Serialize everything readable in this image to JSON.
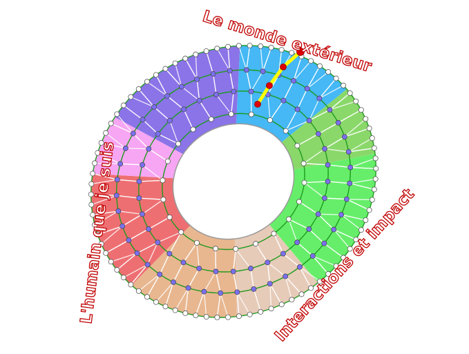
{
  "labels": {
    "top": "Le monde extérieur",
    "left": "L'humain que je suis",
    "bottom_right": "Interactions et impact"
  },
  "colors": {
    "label_outline": "#c00000",
    "ring_lines": "#1e9a1e",
    "white_nodes": "#ffffff",
    "inner_nodes": "#7b6ff0",
    "path": "#ffff00",
    "path_nodes": "#e00000"
  },
  "sectors": [
    {
      "name": "blue",
      "color": "#45b8f5"
    },
    {
      "name": "light-green",
      "color": "#8ad86a"
    },
    {
      "name": "green",
      "color": "#66ee6a"
    },
    {
      "name": "light-peach",
      "color": "#e6cbb8"
    },
    {
      "name": "tan",
      "color": "#e8b790"
    },
    {
      "name": "red",
      "color": "#ee6f72"
    },
    {
      "name": "pink",
      "color": "#f6a6f2"
    },
    {
      "name": "purple",
      "color": "#8b74e8"
    }
  ]
}
